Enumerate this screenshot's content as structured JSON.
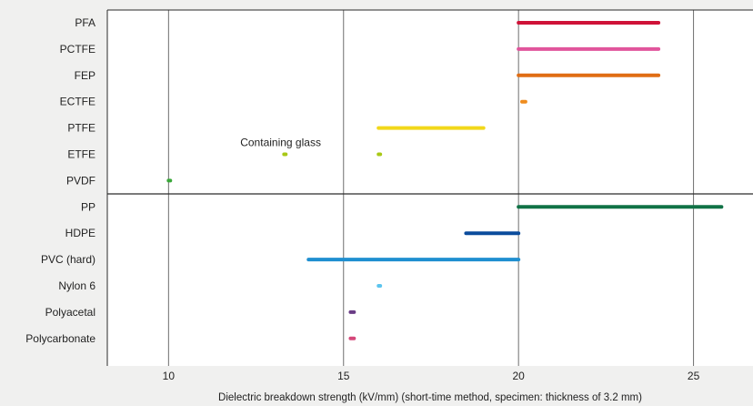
{
  "chart_data": {
    "type": "range-bar",
    "xlabel": "Dielectric breakdown strength (kV/mm) (short-time method, specimen: thickness of 3.2 mm)",
    "xlim": [
      8.25,
      26.7
    ],
    "xticks": [
      10,
      15,
      20,
      25
    ],
    "grid": "vertical",
    "groups": [
      {
        "items": [
          {
            "name": "PFA",
            "ranges": [
              [
                20,
                24
              ]
            ],
            "color": "#cf1238"
          },
          {
            "name": "PCTFE",
            "ranges": [
              [
                20,
                24
              ]
            ],
            "color": "#e1559c"
          },
          {
            "name": "FEP",
            "ranges": [
              [
                20,
                24
              ]
            ],
            "color": "#e06d14"
          },
          {
            "name": "ECTFE",
            "ranges": [
              [
                20.1,
                20.2
              ]
            ],
            "color": "#ef8c1e"
          },
          {
            "name": "PTFE",
            "ranges": [
              [
                16,
                19
              ]
            ],
            "color": "#f2d81a"
          },
          {
            "name": "ETFE",
            "ranges": [
              [
                13.3,
                13.35
              ],
              [
                16,
                16.05
              ]
            ],
            "color": "#a8c816"
          },
          {
            "name": "PVDF",
            "ranges": [
              [
                10,
                10.05
              ]
            ],
            "color": "#3aa83a"
          }
        ]
      },
      {
        "items": [
          {
            "name": "PP",
            "ranges": [
              [
                20,
                25.8
              ]
            ],
            "color": "#107246"
          },
          {
            "name": "HDPE",
            "ranges": [
              [
                18.5,
                20
              ]
            ],
            "color": "#0b4c9c"
          },
          {
            "name": "PVC (hard)",
            "ranges": [
              [
                14,
                20
              ]
            ],
            "color": "#1f8fd0"
          },
          {
            "name": "Nylon 6",
            "ranges": [
              [
                16,
                16.05
              ]
            ],
            "color": "#5cc4ee"
          },
          {
            "name": "Polyacetal",
            "ranges": [
              [
                15.2,
                15.3
              ]
            ],
            "color": "#6a3d86"
          },
          {
            "name": "Polycarbonate",
            "ranges": [
              [
                15.2,
                15.3
              ]
            ],
            "color": "#d5487a"
          }
        ]
      }
    ],
    "annotations": [
      {
        "text": "Containing glass",
        "x": 12.05,
        "category": "ETFE"
      }
    ]
  },
  "colors": {
    "background": "#f0f0ef",
    "plot_background": "#ffffff",
    "gridline": "#6e6e6e",
    "frame": "#2a2a2a"
  }
}
